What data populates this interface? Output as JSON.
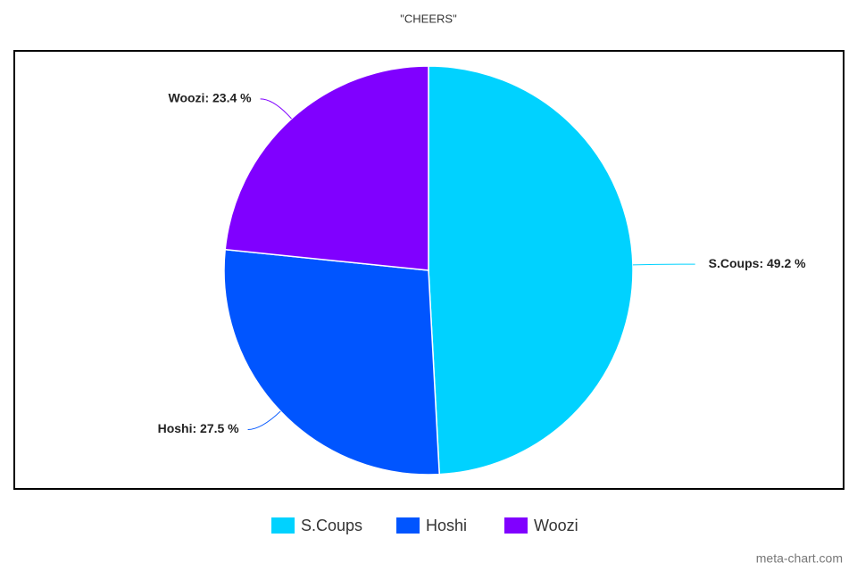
{
  "chart_data": {
    "type": "pie",
    "title": "\"CHEERS\"",
    "categories": [
      "S.Coups",
      "Hoshi",
      "Woozi"
    ],
    "values": [
      49.2,
      27.5,
      23.4
    ],
    "value_labels": [
      "S.Coups: 49.2 %",
      "Hoshi: 27.5 %",
      "Woozi: 23.4 %"
    ],
    "colors": [
      "#00d2ff",
      "#0055ff",
      "#8000ff"
    ],
    "legend": "bottom",
    "credit": "meta-chart.com"
  }
}
